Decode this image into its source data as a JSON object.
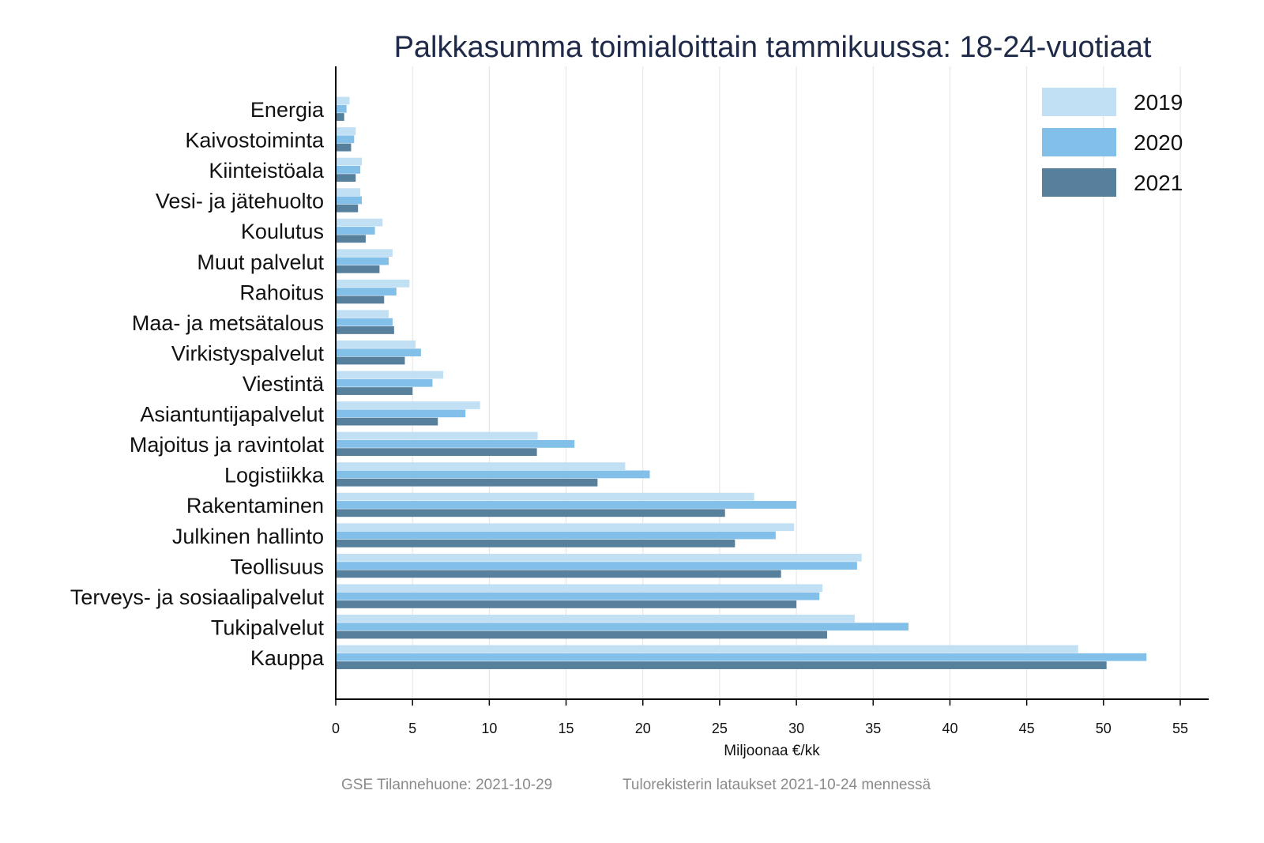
{
  "chart_data": {
    "type": "bar",
    "orientation": "horizontal",
    "title": "Palkkasumma toimialoittain tammikuussa: 18-24-vuotiaat",
    "xlabel": "Miljoonaa €/kk",
    "ylabel": "",
    "xlim": [
      0,
      57
    ],
    "xticks": [
      0,
      5,
      10,
      15,
      20,
      25,
      30,
      35,
      40,
      45,
      50,
      55
    ],
    "grid": "vertical",
    "legend_position": "top-right",
    "categories": [
      "Energia",
      "Kaivostoiminta",
      "Kiinteistöala",
      "Vesi- ja jätehuolto",
      "Koulutus",
      "Muut palvelut",
      "Rahoitus",
      "Maa- ja metsätalous",
      "Virkistyspalvelut",
      "Viestintä",
      "Asiantuntijapalvelut",
      "Majoitus ja ravintolat",
      "Logistiikka",
      "Rakentaminen",
      "Julkinen hallinto",
      "Teollisuus",
      "Terveys- ja sosiaalipalvelut",
      "Tukipalvelut",
      "Kauppa"
    ],
    "series": [
      {
        "name": "2019",
        "color": "#c2e0f4",
        "values": [
          0.9,
          1.3,
          1.7,
          1.6,
          3.05,
          3.7,
          4.8,
          3.45,
          5.2,
          7.0,
          9.4,
          13.15,
          18.85,
          27.25,
          29.85,
          34.25,
          31.7,
          33.8,
          48.35
        ]
      },
      {
        "name": "2020",
        "color": "#82bfe9",
        "values": [
          0.7,
          1.2,
          1.6,
          1.7,
          2.55,
          3.45,
          3.95,
          3.7,
          5.55,
          6.3,
          8.45,
          15.55,
          20.45,
          30.0,
          28.65,
          33.95,
          31.5,
          37.3,
          52.8
        ]
      },
      {
        "name": "2021",
        "color": "#57809c",
        "values": [
          0.55,
          1.0,
          1.3,
          1.45,
          1.95,
          2.85,
          3.15,
          3.8,
          4.5,
          5.0,
          6.65,
          13.1,
          17.05,
          25.35,
          26.0,
          29.0,
          30.0,
          32.0,
          50.2
        ]
      }
    ]
  },
  "footer": {
    "left": "GSE Tilannehuone: 2021-10-29",
    "right": "Tulorekisterin lataukset 2021-10-24 mennessä"
  }
}
